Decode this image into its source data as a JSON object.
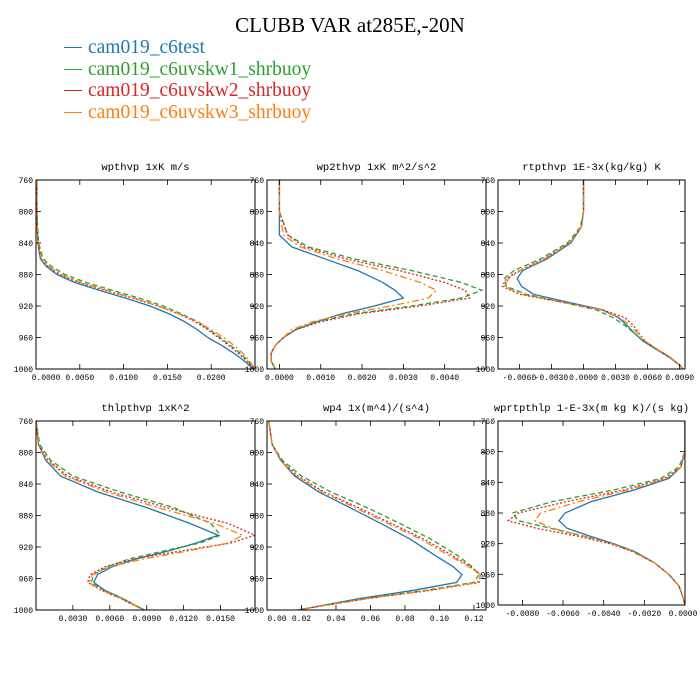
{
  "title": "CLUBB VAR at285E,-20N",
  "legend": [
    {
      "name": "cam019_c6test",
      "color": "#1f77b4"
    },
    {
      "name": "cam019_c6uvskw1_shrbuoy",
      "color": "#2ca02c"
    },
    {
      "name": "cam019_c6uvskw2_shrbuoy",
      "color": "#d62728"
    },
    {
      "name": "cam019_c6uvskw3_shrbuoy",
      "color": "#ff7f0e"
    }
  ],
  "chart_data": [
    {
      "type": "line",
      "title": "wpthvp  1xK m/s",
      "xlim": [
        0,
        0.025
      ],
      "ylim": [
        760,
        1000
      ],
      "xticks": [
        0,
        0.005,
        0.01,
        0.015,
        0.02
      ],
      "xtick_labels": [
        "0.0000",
        "0.0050",
        "0.0100",
        "0.0150",
        "0.0200"
      ],
      "yticks": [
        760,
        800,
        840,
        880,
        920,
        960,
        1000
      ],
      "ytick_labels": [
        "760",
        "800",
        "840",
        "880",
        "920",
        "960",
        "1000"
      ],
      "y": [
        760,
        800,
        840,
        860,
        870,
        880,
        890,
        900,
        910,
        920,
        930,
        940,
        950,
        960,
        970,
        980,
        990,
        1000
      ],
      "series": [
        {
          "name": "cam019_c6test",
          "color": "#1f77b4",
          "values": [
            0.0001,
            0.0001,
            0.0002,
            0.0005,
            0.0012,
            0.0024,
            0.0044,
            0.0072,
            0.0102,
            0.013,
            0.0152,
            0.017,
            0.0184,
            0.0196,
            0.0212,
            0.0226,
            0.0238,
            0.0248
          ]
        },
        {
          "name": "cam019_c6uvskw1_shrbuoy",
          "color": "#2ca02c",
          "values": [
            0.0001,
            0.0001,
            0.0003,
            0.0008,
            0.0018,
            0.0033,
            0.0057,
            0.0087,
            0.0118,
            0.0145,
            0.0166,
            0.0185,
            0.0198,
            0.021,
            0.0222,
            0.0233,
            0.0242,
            0.0249
          ]
        },
        {
          "name": "cam019_c6uvskw2_shrbuoy",
          "color": "#d62728",
          "values": [
            0.0001,
            0.0001,
            0.0002,
            0.0006,
            0.0014,
            0.0027,
            0.0049,
            0.0079,
            0.011,
            0.0139,
            0.0163,
            0.0182,
            0.0196,
            0.0208,
            0.022,
            0.0231,
            0.0241,
            0.0248
          ]
        },
        {
          "name": "cam019_c6uvskw3_shrbuoy",
          "color": "#ff7f0e",
          "values": [
            0.0001,
            0.0001,
            0.0002,
            0.0006,
            0.0015,
            0.0029,
            0.0051,
            0.0081,
            0.0112,
            0.014,
            0.0164,
            0.0184,
            0.02,
            0.0214,
            0.0226,
            0.0236,
            0.0244,
            0.025
          ]
        }
      ]
    },
    {
      "type": "line",
      "title": "wp2thvp  1xK m^2/s^2",
      "xlim": [
        -0.0003,
        0.005
      ],
      "ylim": [
        760,
        1000
      ],
      "xticks": [
        0,
        0.001,
        0.002,
        0.003,
        0.004
      ],
      "xtick_labels": [
        "0.0000",
        "0.0010",
        "0.0020",
        "0.0030",
        "0.0040"
      ],
      "yticks": [
        760,
        800,
        840,
        880,
        920,
        960,
        1000
      ],
      "ytick_labels": [
        "760",
        "800",
        "840",
        "880",
        "920",
        "960",
        "1000"
      ],
      "y": [
        760,
        800,
        830,
        845,
        860,
        875,
        890,
        900,
        910,
        920,
        930,
        940,
        950,
        960,
        970,
        980,
        990,
        1000
      ],
      "series": [
        {
          "name": "cam019_c6test",
          "color": "#1f77b4",
          "values": [
            0.0,
            0.0,
            0.0,
            0.0003,
            0.0011,
            0.0019,
            0.0025,
            0.0028,
            0.003,
            0.0023,
            0.0015,
            0.0009,
            0.0004,
            0.0001,
            -0.0001,
            -0.0002,
            -0.0002,
            -0.0001
          ]
        },
        {
          "name": "cam019_c6uvskw1_shrbuoy",
          "color": "#2ca02c",
          "values": [
            0.0,
            0.0,
            0.0002,
            0.0007,
            0.0018,
            0.0032,
            0.0044,
            0.0049,
            0.0044,
            0.0032,
            0.0018,
            0.0009,
            0.0004,
            0.0001,
            -0.0001,
            -0.0002,
            -0.0002,
            -0.0001
          ]
        },
        {
          "name": "cam019_c6uvskw2_shrbuoy",
          "color": "#d62728",
          "values": [
            0.0,
            0.0,
            0.0002,
            0.0006,
            0.0016,
            0.0029,
            0.004,
            0.0045,
            0.0046,
            0.0034,
            0.0019,
            0.001,
            0.0004,
            0.0001,
            -0.0001,
            -0.0002,
            -0.0002,
            -0.0001
          ]
        },
        {
          "name": "cam019_c6uvskw3_shrbuoy",
          "color": "#ff7f0e",
          "values": [
            0.0,
            0.0,
            0.0001,
            0.0005,
            0.0014,
            0.0025,
            0.0034,
            0.0038,
            0.0036,
            0.0027,
            0.0016,
            0.0008,
            0.0003,
            0.0001,
            -0.0001,
            -0.0002,
            -0.0002,
            -0.0001
          ]
        }
      ]
    },
    {
      "type": "line",
      "title": "rtpthvp  1E-3x(kg/kg) K",
      "xlim": [
        -0.008,
        0.0095
      ],
      "ylim": [
        760,
        1000
      ],
      "xticks": [
        -0.006,
        -0.003,
        0,
        0.003,
        0.006,
        0.009
      ],
      "xtick_labels": [
        "-0.0060",
        "-0.0030",
        "0.0000",
        "0.0030",
        "0.0060",
        "0.0090"
      ],
      "yticks": [
        760,
        800,
        840,
        880,
        920,
        960,
        1000
      ],
      "ytick_labels": [
        "760",
        "800",
        "840",
        "880",
        "920",
        "960",
        "1000"
      ],
      "y": [
        760,
        800,
        820,
        840,
        860,
        875,
        885,
        895,
        905,
        915,
        925,
        935,
        945,
        955,
        965,
        975,
        985,
        995,
        1000
      ],
      "series": [
        {
          "name": "cam019_c6test",
          "color": "#1f77b4",
          "values": [
            0.0,
            0.0,
            -0.0002,
            -0.0012,
            -0.0034,
            -0.0057,
            -0.0062,
            -0.0058,
            -0.0047,
            -0.0015,
            0.0018,
            0.0033,
            0.0041,
            0.0048,
            0.0056,
            0.0068,
            0.008,
            0.009,
            0.0093
          ]
        },
        {
          "name": "cam019_c6uvskw1_shrbuoy",
          "color": "#2ca02c",
          "values": [
            0.0,
            0.0,
            -0.0003,
            -0.0015,
            -0.004,
            -0.0065,
            -0.0074,
            -0.0072,
            -0.0054,
            -0.002,
            0.0012,
            0.0028,
            0.0039,
            0.0048,
            0.0057,
            0.0069,
            0.0081,
            0.009,
            0.0093
          ]
        },
        {
          "name": "cam019_c6uvskw2_shrbuoy",
          "color": "#d62728",
          "values": [
            0.0,
            0.0,
            -0.0002,
            -0.0013,
            -0.0037,
            -0.006,
            -0.0072,
            -0.0076,
            -0.006,
            -0.0021,
            0.0018,
            0.0039,
            0.0047,
            0.0052,
            0.0058,
            0.0069,
            0.0081,
            0.009,
            0.0093
          ]
        },
        {
          "name": "cam019_c6uvskw3_shrbuoy",
          "color": "#ff7f0e",
          "values": [
            0.0,
            0.0,
            -0.0002,
            -0.0013,
            -0.0036,
            -0.0059,
            -0.007,
            -0.0074,
            -0.0058,
            -0.002,
            0.0016,
            0.0034,
            0.0044,
            0.0051,
            0.0058,
            0.0069,
            0.0081,
            0.009,
            0.0093
          ]
        }
      ]
    },
    {
      "type": "line",
      "title": "thlpthvp  1xK^2",
      "xlim": [
        0,
        0.0178
      ],
      "ylim": [
        760,
        1000
      ],
      "xticks": [
        0.003,
        0.006,
        0.009,
        0.012,
        0.015
      ],
      "xtick_labels": [
        "0.0030",
        "0.0060",
        "0.0090",
        "0.0120",
        "0.0150"
      ],
      "yticks": [
        760,
        800,
        840,
        880,
        920,
        960,
        1000
      ],
      "ytick_labels": [
        "760",
        "800",
        "840",
        "880",
        "920",
        "960",
        "1000"
      ],
      "y": [
        760,
        790,
        810,
        830,
        850,
        870,
        890,
        905,
        915,
        925,
        935,
        945,
        955,
        965,
        975,
        985,
        995,
        1000
      ],
      "series": [
        {
          "name": "cam019_c6test",
          "color": "#1f77b4",
          "values": [
            0.0,
            0.0002,
            0.0008,
            0.002,
            0.005,
            0.009,
            0.0125,
            0.0148,
            0.013,
            0.0108,
            0.0082,
            0.0062,
            0.005,
            0.0047,
            0.0056,
            0.007,
            0.0082,
            0.0088
          ]
        },
        {
          "name": "cam019_c6uvskw1_shrbuoy",
          "color": "#2ca02c",
          "values": [
            0.0,
            0.0003,
            0.0012,
            0.003,
            0.0068,
            0.0112,
            0.0142,
            0.015,
            0.0133,
            0.0104,
            0.0076,
            0.0058,
            0.0047,
            0.0045,
            0.0055,
            0.0069,
            0.0082,
            0.0088
          ]
        },
        {
          "name": "cam019_c6uvskw2_shrbuoy",
          "color": "#d62728",
          "values": [
            0.0,
            0.0002,
            0.001,
            0.0026,
            0.0061,
            0.0106,
            0.0156,
            0.0178,
            0.0158,
            0.0118,
            0.008,
            0.0056,
            0.0044,
            0.0042,
            0.0053,
            0.0068,
            0.0081,
            0.0088
          ]
        },
        {
          "name": "cam019_c6uvskw3_shrbuoy",
          "color": "#ff7f0e",
          "values": [
            0.0,
            0.0002,
            0.0009,
            0.0024,
            0.0057,
            0.0099,
            0.0145,
            0.0168,
            0.0156,
            0.0124,
            0.0088,
            0.006,
            0.0046,
            0.0043,
            0.0054,
            0.0069,
            0.0082,
            0.0088
          ]
        }
      ]
    },
    {
      "type": "line",
      "title": "wp4  1x(m^4)/(s^4)",
      "xlim": [
        0,
        0.127
      ],
      "ylim": [
        760,
        1000
      ],
      "xticks": [
        0,
        0.02,
        0.04,
        0.06,
        0.08,
        0.1,
        0.12
      ],
      "xtick_labels": [
        "0.00",
        "0.02",
        "0.04",
        "0.06",
        "0.08",
        "0.10",
        "0.12"
      ],
      "yticks": [
        760,
        800,
        840,
        880,
        920,
        960,
        1000
      ],
      "ytick_labels": [
        "760",
        "800",
        "840",
        "880",
        "920",
        "960",
        "1000"
      ],
      "y": [
        760,
        790,
        810,
        830,
        850,
        870,
        890,
        910,
        930,
        945,
        955,
        965,
        975,
        985,
        995,
        1000
      ],
      "series": [
        {
          "name": "cam019_c6test",
          "color": "#1f77b4",
          "values": [
            0.001,
            0.003,
            0.008,
            0.016,
            0.03,
            0.048,
            0.066,
            0.083,
            0.097,
            0.108,
            0.113,
            0.11,
            0.085,
            0.055,
            0.03,
            0.018
          ]
        },
        {
          "name": "cam019_c6uvskw1_shrbuoy",
          "color": "#2ca02c",
          "values": [
            0.001,
            0.003,
            0.009,
            0.02,
            0.037,
            0.058,
            0.077,
            0.095,
            0.11,
            0.119,
            0.123,
            0.12,
            0.092,
            0.058,
            0.031,
            0.018
          ]
        },
        {
          "name": "cam019_c6uvskw2_shrbuoy",
          "color": "#d62728",
          "values": [
            0.001,
            0.003,
            0.008,
            0.018,
            0.033,
            0.053,
            0.072,
            0.091,
            0.107,
            0.118,
            0.124,
            0.123,
            0.095,
            0.06,
            0.031,
            0.018
          ]
        },
        {
          "name": "cam019_c6uvskw3_shrbuoy",
          "color": "#ff7f0e",
          "values": [
            0.001,
            0.003,
            0.008,
            0.017,
            0.032,
            0.051,
            0.07,
            0.089,
            0.105,
            0.117,
            0.124,
            0.122,
            0.094,
            0.059,
            0.031,
            0.018
          ]
        }
      ]
    },
    {
      "type": "line",
      "title": "wprtpthlp  1-E-3x(m kg K)/(s kg)",
      "xlim": [
        -0.0092,
        0
      ],
      "ylim": [
        760,
        1000
      ],
      "xticks": [
        -0.008,
        -0.006,
        -0.004,
        -0.002,
        0
      ],
      "xtick_labels": [
        "-0.0080",
        "-0.0060",
        "-0.0040",
        "-0.0020",
        "0.0000"
      ],
      "yticks": [
        760,
        800,
        840,
        880,
        920,
        960,
        1000
      ],
      "ytick_labels": [
        "760",
        "800",
        "840",
        "880",
        "920",
        "960",
        "1000"
      ],
      "y": [
        760,
        800,
        820,
        835,
        850,
        865,
        880,
        890,
        900,
        910,
        920,
        930,
        945,
        960,
        975,
        990,
        1000
      ],
      "series": [
        {
          "name": "cam019_c6test",
          "color": "#1f77b4",
          "values": [
            0.0,
            0.0,
            -0.0002,
            -0.0008,
            -0.0025,
            -0.0046,
            -0.0059,
            -0.0062,
            -0.0058,
            -0.0047,
            -0.0035,
            -0.0025,
            -0.0015,
            -0.0008,
            -0.0003,
            -0.0001,
            0.0
          ]
        },
        {
          "name": "cam019_c6uvskw1_shrbuoy",
          "color": "#2ca02c",
          "values": [
            0.0,
            0.0,
            -0.0003,
            -0.0012,
            -0.0035,
            -0.0065,
            -0.0085,
            -0.0082,
            -0.0066,
            -0.005,
            -0.0036,
            -0.0026,
            -0.0015,
            -0.0008,
            -0.0003,
            -0.0001,
            0.0
          ]
        },
        {
          "name": "cam019_c6uvskw2_shrbuoy",
          "color": "#d62728",
          "values": [
            0.0,
            0.0,
            -0.0002,
            -0.001,
            -0.003,
            -0.0058,
            -0.0082,
            -0.0087,
            -0.0073,
            -0.0053,
            -0.0037,
            -0.0026,
            -0.0015,
            -0.0008,
            -0.0003,
            -0.0001,
            0.0
          ]
        },
        {
          "name": "cam019_c6uvskw3_shrbuoy",
          "color": "#ff7f0e",
          "values": [
            0.0,
            0.0,
            -0.0002,
            -0.0009,
            -0.0028,
            -0.0052,
            -0.0071,
            -0.0074,
            -0.0065,
            -0.005,
            -0.0036,
            -0.0026,
            -0.0015,
            -0.0008,
            -0.0003,
            -0.0001,
            0.0
          ]
        }
      ]
    }
  ]
}
